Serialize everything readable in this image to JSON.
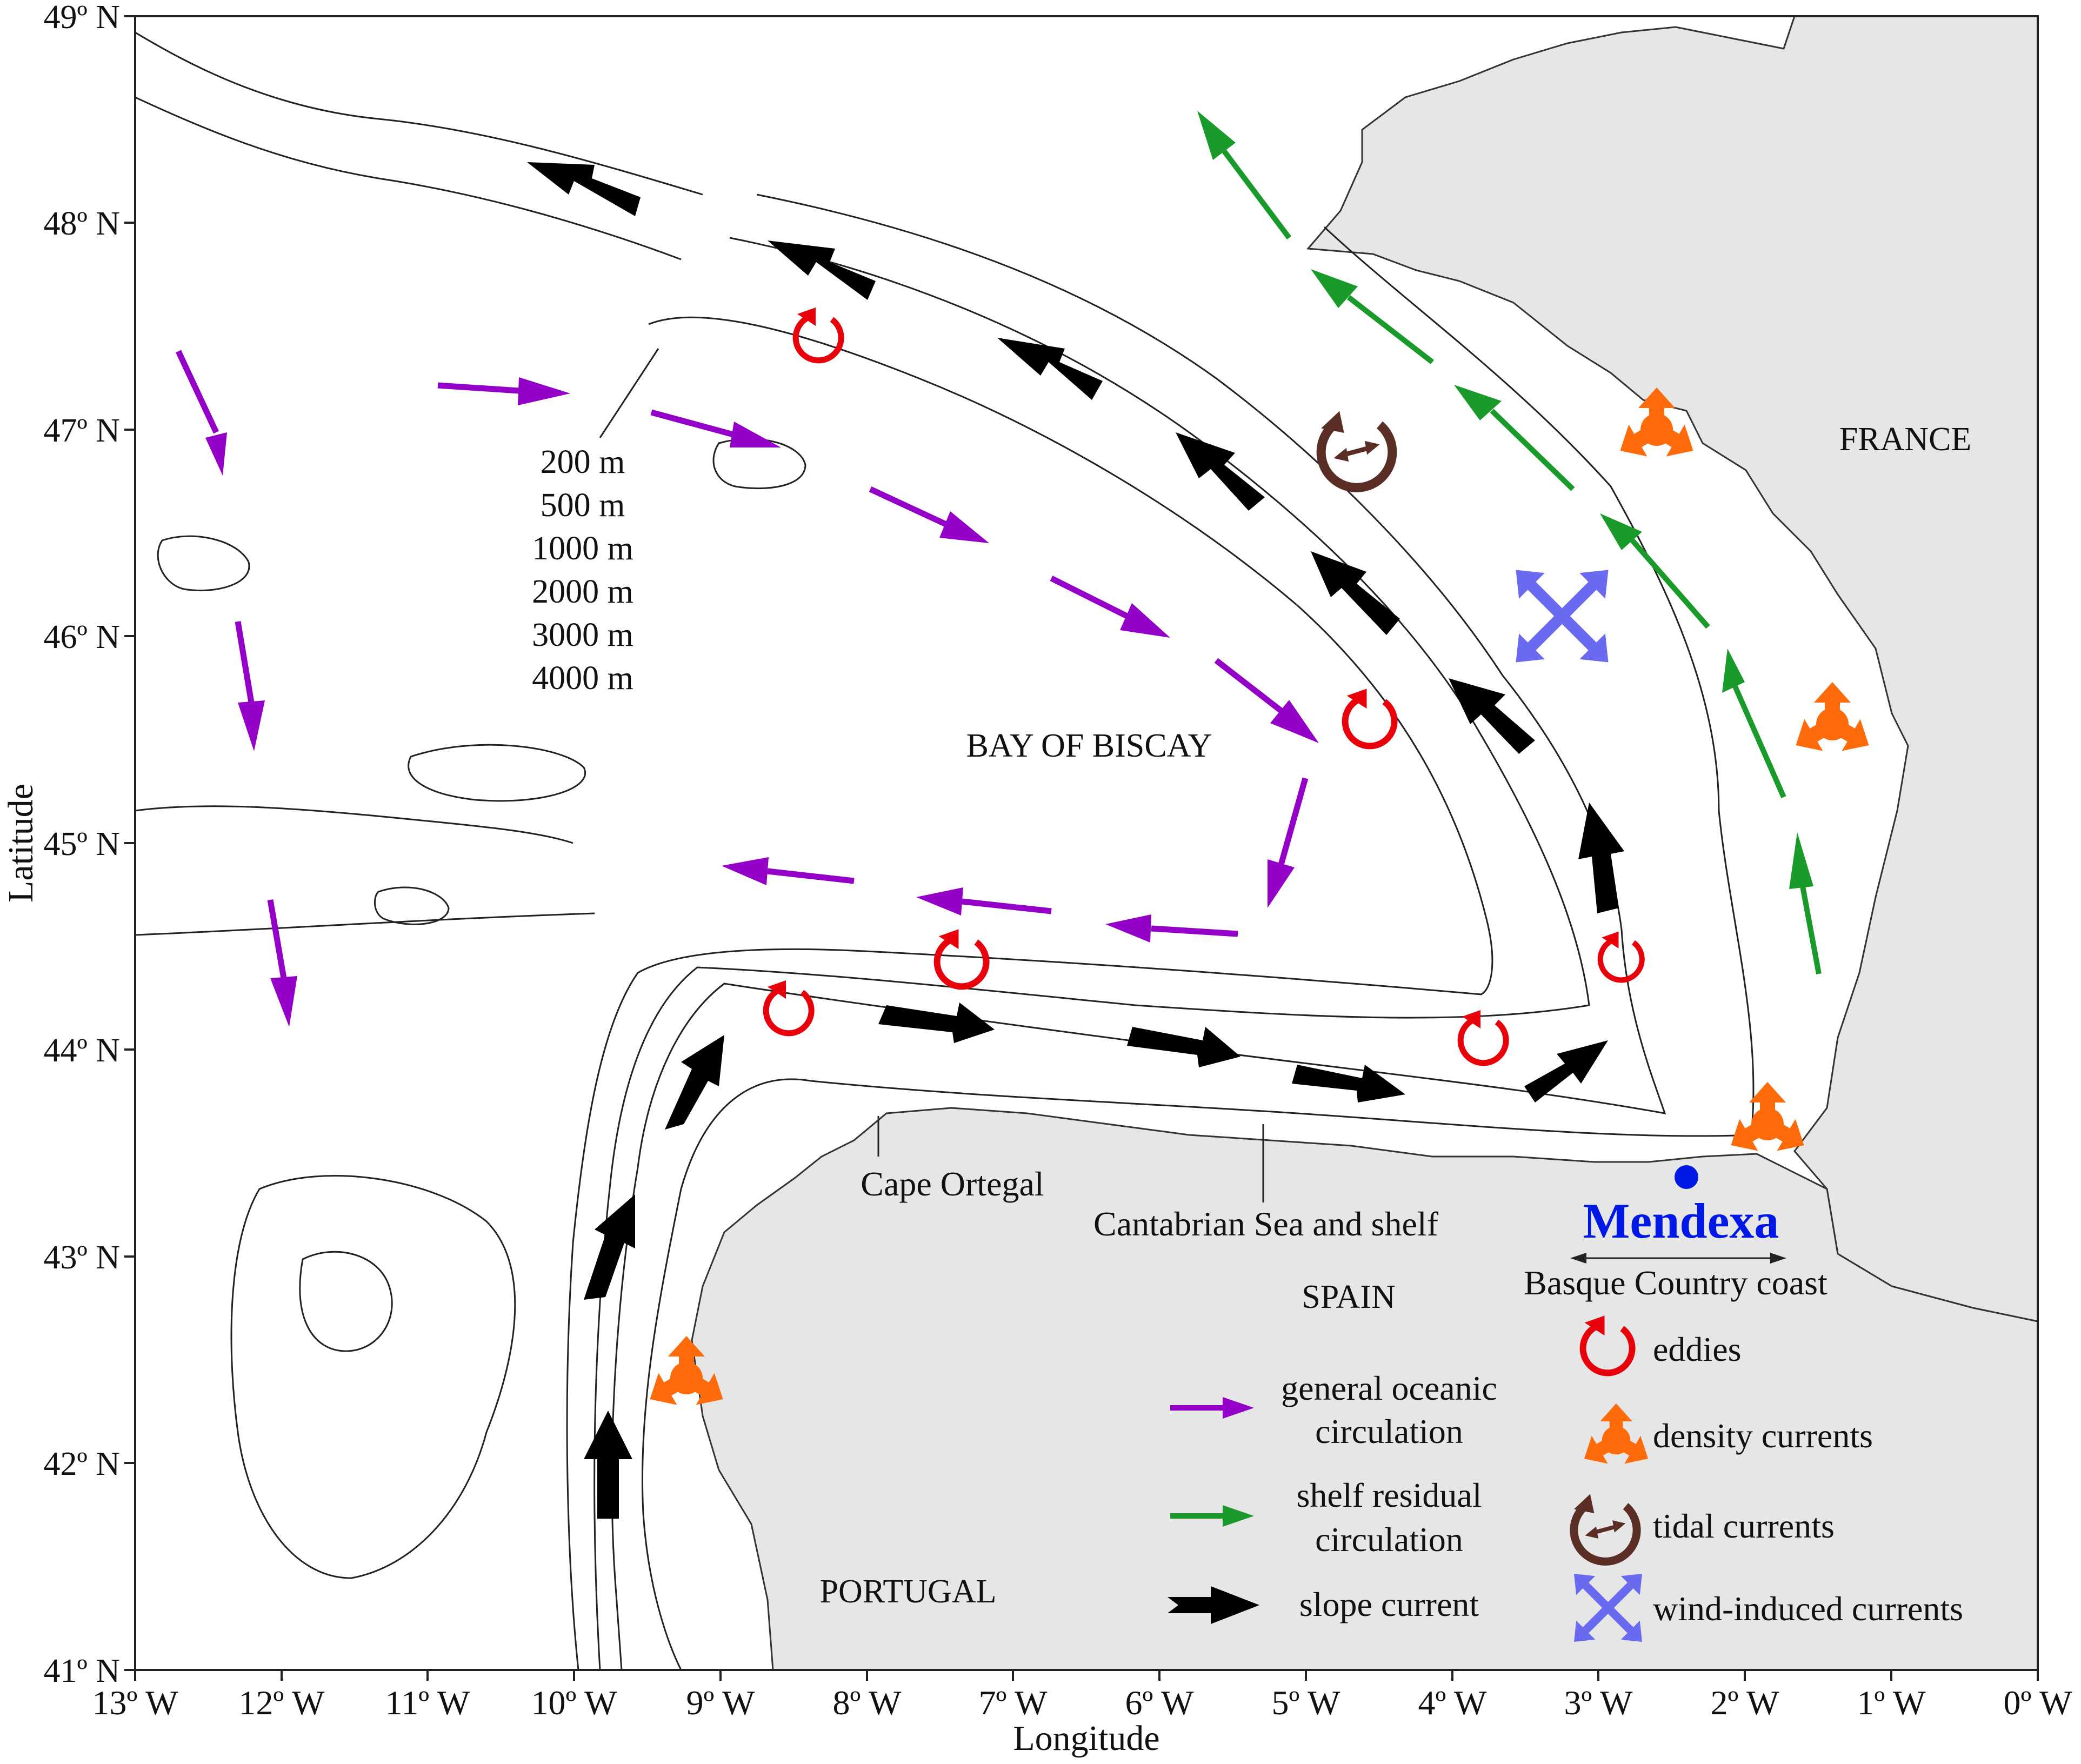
{
  "axes": {
    "lat_ticks": [
      "49º N",
      "48º N",
      "47º N",
      "46º N",
      "45º N",
      "44º N",
      "43º N",
      "42º N",
      "41º N"
    ],
    "lon_ticks": [
      "13º W",
      "12º W",
      "11º W",
      "10º W",
      "9º W",
      "8º W",
      "7º W",
      "6º W",
      "5º W",
      "4º W",
      "3º W",
      "2º W",
      "1º W",
      "0º W"
    ],
    "xlabel": "Longitude",
    "ylabel": "Latitude"
  },
  "regions": {
    "france": "FRANCE",
    "spain": "SPAIN",
    "portugal": "PORTUGAL",
    "bay": "BAY OF BISCAY"
  },
  "depth_labels": [
    "200 m",
    "500 m",
    "1000 m",
    "2000 m",
    "3000 m",
    "4000 m"
  ],
  "places": {
    "cape_ortegal": "Cape Ortegal",
    "cantabrian": "Cantabrian Sea and shelf",
    "basque_coast": "Basque Country coast",
    "site": "Mendexa"
  },
  "legend": {
    "oceanic": [
      "general oceanic",
      "circulation"
    ],
    "shelf": [
      "shelf residual",
      "circulation"
    ],
    "slope": "slope current",
    "eddies": "eddies",
    "density": "density currents",
    "tidal": "tidal currents",
    "wind": "wind-induced currents"
  },
  "colors": {
    "oceanic": "#9400c8",
    "shelf": "#1a9a2a",
    "slope": "#000000",
    "eddies": "#e8000b",
    "density": "#ff6a0a",
    "tidal": "#5a2e24",
    "wind": "#6a6af0",
    "site": "#0018e6",
    "land": "#e6e6e6"
  }
}
